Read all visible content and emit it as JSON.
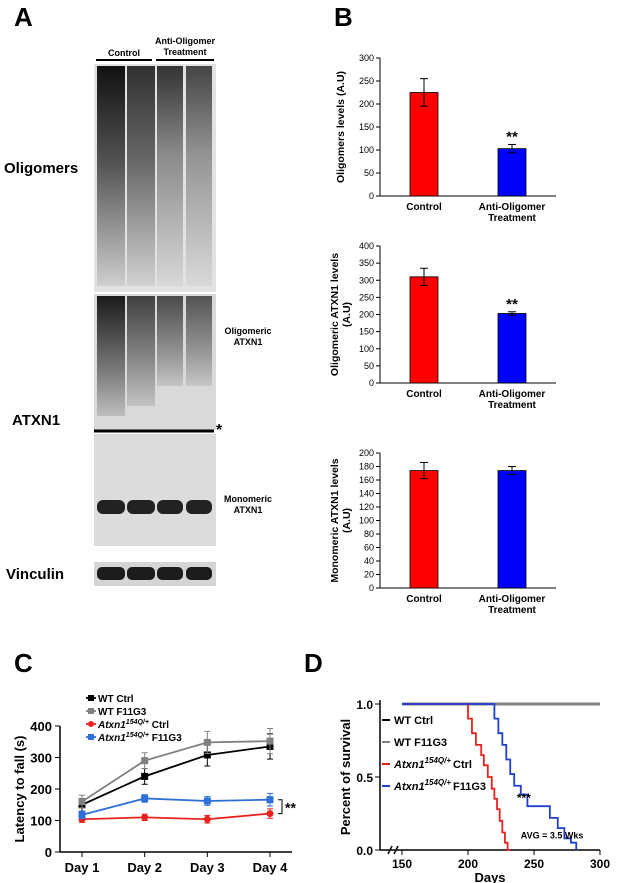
{
  "panels": {
    "A": "A",
    "B": "B",
    "C": "C",
    "D": "D"
  },
  "blot": {
    "group_control": "Control",
    "group_treatment_line1": "Anti-Oligomer",
    "group_treatment_line2": "Treatment",
    "label_oligomers": "Oligomers",
    "label_atxn1": "ATXN1",
    "label_vinculin": "Vinculin",
    "label_oligomeric_line1": "Oligomeric",
    "label_oligomeric_line2": "ATXN1",
    "label_monomeric_line1": "Monomeric",
    "label_monomeric_line2": "ATXN1",
    "asterisk": "*"
  },
  "colors": {
    "control": "#ff0000",
    "treatment": "#0000ff",
    "wt_ctrl": "#000000",
    "wt_f11g3": "#808080",
    "atxn_ctrl": "#e8231f",
    "atxn_f11g3": "#2e6fd8"
  },
  "chart_data": [
    {
      "id": "B1",
      "type": "bar",
      "categories": [
        "Control",
        "Anti-Oligomer Treatment"
      ],
      "category_lines": [
        [
          "Control"
        ],
        [
          "Anti-Oligomer",
          "Treatment"
        ]
      ],
      "values": [
        225,
        103
      ],
      "errors": [
        30,
        9
      ],
      "colors": [
        "#ff0000",
        "#0000ff"
      ],
      "significance": [
        "",
        "**"
      ],
      "ylabel": "Oligomers levels (A.U)",
      "ylabel_lines": [
        "Oligomers levels (A.U)"
      ],
      "ylim": [
        0,
        300
      ],
      "yticks": [
        0,
        50,
        100,
        150,
        200,
        250,
        300
      ]
    },
    {
      "id": "B2",
      "type": "bar",
      "categories": [
        "Control",
        "Anti-Oligomer Treatment"
      ],
      "category_lines": [
        [
          "Control"
        ],
        [
          "Anti-Oligomer",
          "Treatment"
        ]
      ],
      "values": [
        310,
        203
      ],
      "errors": [
        25,
        5
      ],
      "colors": [
        "#ff0000",
        "#0000ff"
      ],
      "significance": [
        "",
        "**"
      ],
      "ylabel": "Oligomeric ATXN1 levels (A.U)",
      "ylabel_lines": [
        "Oligomeric ATXN1 levels",
        "(A.U)"
      ],
      "ylim": [
        0,
        400
      ],
      "yticks": [
        0,
        50,
        100,
        150,
        200,
        250,
        300,
        350,
        400
      ]
    },
    {
      "id": "B3",
      "type": "bar",
      "categories": [
        "Control",
        "Anti-Oligomer Treatment"
      ],
      "category_lines": [
        [
          "Control"
        ],
        [
          "Anti-Oligomer",
          "Treatment"
        ]
      ],
      "values": [
        174,
        174
      ],
      "errors": [
        12,
        6
      ],
      "colors": [
        "#ff0000",
        "#0000ff"
      ],
      "significance": [
        "",
        ""
      ],
      "ylabel": "Monomeric ATXN1 levels (A.U)",
      "ylabel_lines": [
        "Monomeric ATXN1  levels",
        "(A.U)"
      ],
      "ylim": [
        0,
        200
      ],
      "yticks": [
        0,
        20,
        40,
        60,
        80,
        100,
        120,
        140,
        160,
        180,
        200
      ]
    },
    {
      "id": "C",
      "type": "line",
      "categories": [
        "Day 1",
        "Day 2",
        "Day 3",
        "Day 4"
      ],
      "ylabel": "Latency to fall (s)",
      "ylim": [
        0,
        400
      ],
      "yticks": [
        0,
        100,
        200,
        300,
        400
      ],
      "significance": "**",
      "series": [
        {
          "name": "WT Ctrl",
          "values": [
            150,
            240,
            308,
            335
          ],
          "errors": [
            20,
            25,
            35,
            40
          ],
          "color": "#000000",
          "marker": "square"
        },
        {
          "name": "WT F11G3",
          "values": [
            160,
            290,
            348,
            352
          ],
          "errors": [
            20,
            25,
            35,
            40
          ],
          "color": "#808080",
          "marker": "square"
        },
        {
          "name": "Atxn1 154Q/+ Ctrl",
          "values": [
            104,
            110,
            104,
            122
          ],
          "errors": [
            10,
            10,
            12,
            15
          ],
          "color": "#e8231f",
          "marker": "circle"
        },
        {
          "name": "Atxn1 154Q/+ F11G3",
          "values": [
            118,
            170,
            162,
            166
          ],
          "errors": [
            12,
            12,
            14,
            20
          ],
          "color": "#2e6fd8",
          "marker": "square"
        }
      ],
      "legend": [
        {
          "pre": "WT Ctrl",
          "sup": "",
          "post": "",
          "italic": false
        },
        {
          "pre": "WT F11G3",
          "sup": "",
          "post": "",
          "italic": false
        },
        {
          "pre": "Atxn1",
          "sup": "154Q/+",
          "post": " Ctrl",
          "italic": true
        },
        {
          "pre": "Atxn1",
          "sup": "154Q/+",
          "post": " F11G3",
          "italic": true
        }
      ]
    },
    {
      "id": "D",
      "type": "line",
      "step": true,
      "xlabel": "Days",
      "ylabel": "Percent of survival",
      "xticks": [
        150,
        200,
        250,
        300
      ],
      "yticks": [
        0.0,
        0.5,
        1.0
      ],
      "ytick_labels": [
        "0.0",
        "0.5",
        "1.0"
      ],
      "xlim": [
        150,
        300
      ],
      "ylim": [
        0,
        1
      ],
      "annotation_stars": "***",
      "annotation_avg": "AVG = 3.5 Wks",
      "series": [
        {
          "name": "WT Ctrl",
          "color": "#000000",
          "x": [
            150,
            300
          ],
          "y": [
            1.0,
            1.0
          ]
        },
        {
          "name": "WT F11G3",
          "color": "#808080",
          "x": [
            150,
            300
          ],
          "y": [
            1.0,
            1.0
          ]
        },
        {
          "name": "Atxn1 154Q/+ Ctrl",
          "color": "#e8231f",
          "x": [
            150,
            196,
            200,
            203,
            206,
            210,
            212,
            215,
            218,
            220,
            222,
            224,
            226,
            228,
            230,
            232
          ],
          "y": [
            1.0,
            1.0,
            0.9,
            0.8,
            0.72,
            0.65,
            0.58,
            0.5,
            0.42,
            0.35,
            0.28,
            0.2,
            0.12,
            0.05,
            0.0,
            0.0
          ]
        },
        {
          "name": "Atxn1 154Q/+ F11G3",
          "color": "#1f3fd0",
          "x": [
            150,
            217,
            220,
            223,
            226,
            229,
            232,
            235,
            240,
            245,
            255,
            262,
            268,
            273,
            278,
            282,
            282
          ],
          "y": [
            1.0,
            1.0,
            0.9,
            0.8,
            0.72,
            0.62,
            0.52,
            0.44,
            0.38,
            0.3,
            0.3,
            0.22,
            0.15,
            0.08,
            0.05,
            0.05,
            0.0
          ]
        }
      ],
      "legend": [
        {
          "pre": "WT Ctrl",
          "sup": "",
          "post": "",
          "italic": false
        },
        {
          "pre": "WT F11G3",
          "sup": "",
          "post": "",
          "italic": false
        },
        {
          "pre": "Atxn1",
          "sup": "154Q/+",
          "post": "Ctrl",
          "italic": true
        },
        {
          "pre": "Atxn1",
          "sup": "154Q/+",
          "post": "F11G3",
          "italic": true
        }
      ]
    }
  ]
}
